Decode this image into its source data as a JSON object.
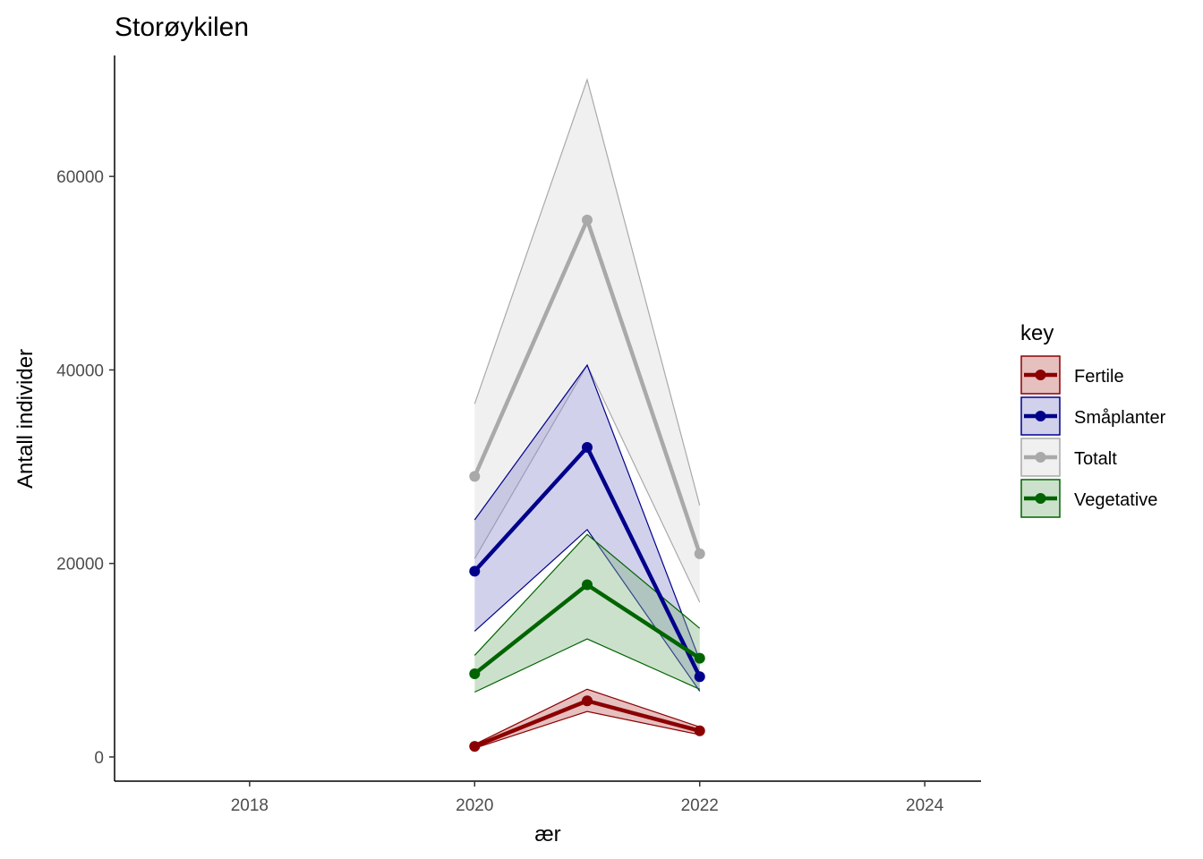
{
  "chart_data": {
    "type": "line",
    "title": "Storøykilen",
    "xlabel": "ær",
    "ylabel": "Antall individer",
    "xlim": [
      2016.8,
      2024.5
    ],
    "ylim": [
      -2500,
      72500
    ],
    "x_ticks": [
      2018,
      2020,
      2022,
      2024
    ],
    "x_tick_labels": [
      "2018",
      "2020",
      "2022",
      "2024"
    ],
    "y_ticks": [
      0,
      20000,
      40000,
      60000
    ],
    "y_tick_labels": [
      "0",
      "20000",
      "40000",
      "60000"
    ],
    "grid": false,
    "legend": {
      "title": "key",
      "position": "right"
    },
    "x": [
      2020,
      2021,
      2022
    ],
    "series": [
      {
        "name": "Totalt",
        "color": "#a9a9a9",
        "fill": "#d9d9d9",
        "values": [
          29000,
          55500,
          21000
        ],
        "lower": [
          20500,
          40500,
          16000
        ],
        "upper": [
          36500,
          70000,
          26000
        ]
      },
      {
        "name": "Småplanter",
        "color": "#00008b",
        "fill": "#8b8bd0",
        "values": [
          19200,
          32000,
          8300
        ],
        "lower": [
          13000,
          23500,
          6800
        ],
        "upper": [
          24500,
          40500,
          10000
        ]
      },
      {
        "name": "Vegetative",
        "color": "#006400",
        "fill": "#80b380",
        "values": [
          8600,
          17800,
          10200
        ],
        "lower": [
          6700,
          12200,
          7000
        ],
        "upper": [
          10500,
          23000,
          13300
        ]
      },
      {
        "name": "Fertile",
        "color": "#8b0000",
        "fill": "#c06060",
        "values": [
          1100,
          5800,
          2700
        ],
        "lower": [
          900,
          4700,
          2300
        ],
        "upper": [
          1300,
          7000,
          3100
        ]
      }
    ],
    "legend_order": [
      "Fertile",
      "Småplanter",
      "Totalt",
      "Vegetative"
    ]
  }
}
